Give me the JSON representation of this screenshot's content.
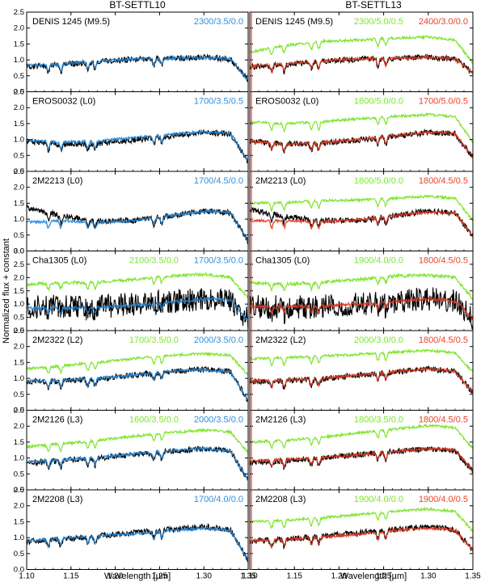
{
  "chart_data": {
    "type": "line",
    "ylabel": "Normalized flux + constant",
    "colors": {
      "observed": "#000000",
      "settl10": "#2f8fdd",
      "settl13_green": "#7ee52f",
      "settl13_red": "#e8432a"
    },
    "columns": [
      {
        "title": "BT-SETTL10",
        "xlabel": "Wavelength [µm]",
        "xlim": [
          1.1,
          1.35
        ],
        "xticks": [
          "1.10",
          "1.15",
          "1.20",
          "1.25",
          "1.30",
          "1.35"
        ]
      },
      {
        "title": "BT-SETTL13",
        "xlabel": "Wavelength [µm]",
        "xlim": [
          1.1,
          1.35
        ],
        "xticks": [
          "1.10",
          "1.15",
          "1.20",
          "1.25",
          "1.30",
          "1.35"
        ]
      }
    ],
    "rows": [
      {
        "ylim": [
          0,
          2.5
        ],
        "yticks": [
          "0.0",
          "0.5",
          "1.0",
          "1.5",
          "2.0",
          "2.5"
        ],
        "panels": [
          {
            "object": "DENIS 1245 (M9.5)",
            "series": [
              {
                "name": "2300/3.5/0.0",
                "color": "settl10",
                "values": [
                  0.82,
                  0.87,
                  0.96,
                  1.02,
                  1.05,
                  1.06,
                  1.05,
                  0.35
                ],
                "offset": 0
              }
            ],
            "observed": {
              "values": [
                0.78,
                0.85,
                0.95,
                1.02,
                1.05,
                1.08,
                1.03,
                0.38
              ],
              "offset": 0
            }
          },
          {
            "object": "DENIS 1245 (M9.5)",
            "series": [
              {
                "name": "2300/5.0/0.5",
                "color": "settl13_green",
                "values": [
                  1.25,
                  1.45,
                  1.58,
                  1.62,
                  1.68,
                  1.72,
                  1.62,
                  0.9
                ],
                "offset": 0
              },
              {
                "name": "2400/3.0/0.0",
                "color": "settl13_red",
                "values": [
                  0.78,
                  0.88,
                  0.97,
                  1.03,
                  1.05,
                  1.08,
                  1.04,
                  0.6
                ],
                "offset": 0
              }
            ],
            "observed": {
              "values": [
                0.78,
                0.85,
                0.95,
                1.02,
                1.05,
                1.08,
                1.03,
                0.6
              ],
              "offset": 0
            }
          }
        ]
      },
      {
        "ylim": [
          0,
          2.5
        ],
        "yticks": [
          "0.0",
          "0.5",
          "1.0",
          "1.5",
          "2.0",
          "2.5"
        ],
        "panels": [
          {
            "object": "EROS0032 (L0)",
            "series": [
              {
                "name": "1700/3.5/0.5",
                "color": "settl10",
                "values": [
                  0.98,
                  0.92,
                  0.95,
                  1.05,
                  1.15,
                  1.25,
                  1.2,
                  0.3
                ],
                "offset": 0
              }
            ],
            "observed": {
              "values": [
                0.95,
                0.85,
                0.88,
                0.98,
                1.1,
                1.22,
                1.18,
                0.3
              ],
              "offset": 0
            }
          },
          {
            "object": "EROS0032 (L0)",
            "series": [
              {
                "name": "1800/5.0/0.0",
                "color": "settl13_green",
                "values": [
                  1.55,
                  1.5,
                  1.55,
                  1.65,
                  1.72,
                  1.78,
                  1.72,
                  0.9
                ],
                "offset": 0
              },
              {
                "name": "1700/5.0/0.5",
                "color": "settl13_red",
                "values": [
                  0.95,
                  0.85,
                  0.9,
                  1.0,
                  1.12,
                  1.22,
                  1.18,
                  0.45
                ],
                "offset": 0
              }
            ],
            "observed": {
              "values": [
                0.95,
                0.85,
                0.88,
                0.98,
                1.1,
                1.22,
                1.18,
                0.45
              ],
              "offset": 0
            }
          }
        ]
      },
      {
        "ylim": [
          0,
          2.5
        ],
        "yticks": [
          "0.0",
          "0.5",
          "1.0",
          "1.5",
          "2.0",
          "2.5"
        ],
        "panels": [
          {
            "object": "2M2213 (L0)",
            "series": [
              {
                "name": "1700/4.5/0.0",
                "color": "settl10",
                "values": [
                  0.9,
                  0.95,
                  0.9,
                  0.95,
                  1.1,
                  1.25,
                  1.22,
                  0.3
                ],
                "offset": 0
              }
            ],
            "observed": {
              "values": [
                1.35,
                1.1,
                0.95,
                0.95,
                1.1,
                1.25,
                1.2,
                0.3
              ],
              "offset": 0
            }
          },
          {
            "object": "2M2213 (L0)",
            "series": [
              {
                "name": "1800/5.0/0.0",
                "color": "settl13_green",
                "values": [
                  1.5,
                  1.52,
                  1.58,
                  1.6,
                  1.65,
                  1.72,
                  1.65,
                  0.95
                ],
                "offset": 0
              },
              {
                "name": "1800/4.5/0.5",
                "color": "settl13_red",
                "values": [
                  0.95,
                  0.95,
                  0.92,
                  0.98,
                  1.1,
                  1.22,
                  1.2,
                  0.45
                ],
                "offset": 0
              }
            ],
            "observed": {
              "values": [
                1.3,
                1.1,
                0.95,
                0.95,
                1.1,
                1.25,
                1.2,
                0.45
              ],
              "offset": 0
            }
          }
        ]
      },
      {
        "ylim": [
          0,
          3.0
        ],
        "yticks": [
          "0.0",
          "0.5",
          "1.0",
          "1.5",
          "2.0",
          "2.5",
          "3.0"
        ],
        "panels": [
          {
            "object": "Cha1305 (L0)",
            "series": [
              {
                "name": "2100/3.5/0.0",
                "color": "settl13_green",
                "values": [
                  1.75,
                  1.8,
                  1.82,
                  1.92,
                  2.05,
                  2.12,
                  2.02,
                  1.2
                ],
                "offset": 0
              },
              {
                "name": "1700/3.5/0.0",
                "color": "settl10",
                "values": [
                  0.85,
                  0.85,
                  0.88,
                  0.95,
                  1.05,
                  1.2,
                  1.15,
                  0.4
                ],
                "offset": 0
              }
            ],
            "observed": {
              "values": [
                0.9,
                0.9,
                0.9,
                1.0,
                1.1,
                1.2,
                1.1,
                0.4
              ],
              "offset": 0
            }
          },
          {
            "object": "Cha1305 (L0)",
            "series": [
              {
                "name": "1900/4.0/0.0",
                "color": "settl13_green",
                "values": [
                  1.8,
                  1.75,
                  1.82,
                  1.92,
                  2.05,
                  2.1,
                  2.0,
                  1.2
                ],
                "offset": 0
              },
              {
                "name": "1800/4.5/0.5",
                "color": "settl13_red",
                "values": [
                  0.9,
                  0.9,
                  0.92,
                  1.0,
                  1.1,
                  1.2,
                  1.12,
                  0.45
                ],
                "offset": 0
              }
            ],
            "observed": {
              "values": [
                0.9,
                0.9,
                0.9,
                1.0,
                1.1,
                1.2,
                1.1,
                0.45
              ],
              "offset": 0
            }
          }
        ]
      },
      {
        "ylim": [
          0,
          2.5
        ],
        "yticks": [
          "0.0",
          "0.5",
          "1.0",
          "1.5",
          "2.0",
          "2.5"
        ],
        "panels": [
          {
            "object": "2M2322 (L2)",
            "series": [
              {
                "name": "1700/3.5/0.0",
                "color": "settl13_green",
                "values": [
                  1.3,
                  1.4,
                  1.5,
                  1.62,
                  1.72,
                  1.78,
                  1.72,
                  1.1
                ],
                "offset": 0
              },
              {
                "name": "2000/3.5/0.0",
                "color": "settl10",
                "values": [
                  0.92,
                  0.95,
                  1.0,
                  1.1,
                  1.22,
                  1.28,
                  1.2,
                  0.3
                ],
                "offset": 0
              }
            ],
            "observed": {
              "values": [
                0.9,
                0.92,
                0.98,
                1.1,
                1.2,
                1.3,
                1.22,
                0.3
              ],
              "offset": 0
            }
          },
          {
            "object": "2M2322 (L2)",
            "series": [
              {
                "name": "2000/3.0/0.0",
                "color": "settl13_green",
                "values": [
                  1.62,
                  1.65,
                  1.7,
                  1.75,
                  1.82,
                  1.88,
                  1.8,
                  1.2
                ],
                "offset": 0
              },
              {
                "name": "1800/4.5/0.5",
                "color": "settl13_red",
                "values": [
                  0.92,
                  0.95,
                  1.0,
                  1.1,
                  1.2,
                  1.3,
                  1.22,
                  0.55
                ],
                "offset": 0
              }
            ],
            "observed": {
              "values": [
                0.9,
                0.92,
                0.98,
                1.1,
                1.2,
                1.3,
                1.22,
                0.55
              ],
              "offset": 0
            }
          }
        ]
      },
      {
        "ylim": [
          0,
          2.5
        ],
        "yticks": [
          "0.0",
          "0.5",
          "1.0",
          "1.5",
          "2.0",
          "2.5"
        ],
        "panels": [
          {
            "object": "2M2126 (L3)",
            "series": [
              {
                "name": "1600/3.5/0.0",
                "color": "settl13_green",
                "values": [
                  1.35,
                  1.45,
                  1.55,
                  1.68,
                  1.8,
                  1.88,
                  1.82,
                  1.15
                ],
                "offset": 0
              },
              {
                "name": "2000/3.5/0.0",
                "color": "settl10",
                "values": [
                  0.88,
                  0.95,
                  1.02,
                  1.12,
                  1.22,
                  1.3,
                  1.22,
                  0.3
                ],
                "offset": 0
              }
            ],
            "observed": {
              "values": [
                0.85,
                0.92,
                1.0,
                1.1,
                1.2,
                1.3,
                1.22,
                0.3
              ],
              "offset": 0
            }
          },
          {
            "object": "2M2126 (L3)",
            "series": [
              {
                "name": "1800/3.5/0.0",
                "color": "settl13_green",
                "values": [
                  1.5,
                  1.55,
                  1.65,
                  1.78,
                  1.9,
                  2.02,
                  1.95,
                  1.3
                ],
                "offset": 0
              },
              {
                "name": "1800/4.5/0.5",
                "color": "settl13_red",
                "values": [
                  0.9,
                  0.95,
                  1.0,
                  1.1,
                  1.2,
                  1.3,
                  1.25,
                  0.6
                ],
                "offset": 0
              }
            ],
            "observed": {
              "values": [
                0.85,
                0.92,
                1.0,
                1.1,
                1.2,
                1.3,
                1.22,
                0.6
              ],
              "offset": 0
            }
          }
        ]
      },
      {
        "ylim": [
          0,
          2.5
        ],
        "yticks": [
          "0.0",
          "0.5",
          "1.0",
          "1.5",
          "2.0",
          "2.5"
        ],
        "panels": [
          {
            "object": "2M2208 (L3)",
            "series": [
              {
                "name": "1700/4.0/0.0",
                "color": "settl10",
                "values": [
                  0.9,
                  0.98,
                  1.05,
                  1.12,
                  1.22,
                  1.3,
                  1.22,
                  0.3
                ],
                "offset": 0
              }
            ],
            "observed": {
              "values": [
                0.88,
                0.95,
                1.05,
                1.15,
                1.25,
                1.35,
                1.25,
                0.3
              ],
              "offset": 0
            }
          },
          {
            "object": "2M2208 (L3)",
            "series": [
              {
                "name": "1900/4.0/0.0",
                "color": "settl13_green",
                "values": [
                  1.5,
                  1.55,
                  1.62,
                  1.72,
                  1.82,
                  1.9,
                  1.82,
                  1.2
                ],
                "offset": 0
              },
              {
                "name": "1900/4.0/0.5",
                "color": "settl13_red",
                "values": [
                  0.9,
                  0.95,
                  1.02,
                  1.1,
                  1.22,
                  1.3,
                  1.25,
                  0.6
                ],
                "offset": 0
              }
            ],
            "observed": {
              "values": [
                0.88,
                0.95,
                1.05,
                1.15,
                1.25,
                1.35,
                1.25,
                0.6
              ],
              "offset": 0
            }
          }
        ]
      }
    ],
    "wavelength_samples": [
      1.1,
      1.14,
      1.18,
      1.22,
      1.26,
      1.3,
      1.33,
      1.35
    ],
    "grid": false,
    "legend": "none"
  }
}
